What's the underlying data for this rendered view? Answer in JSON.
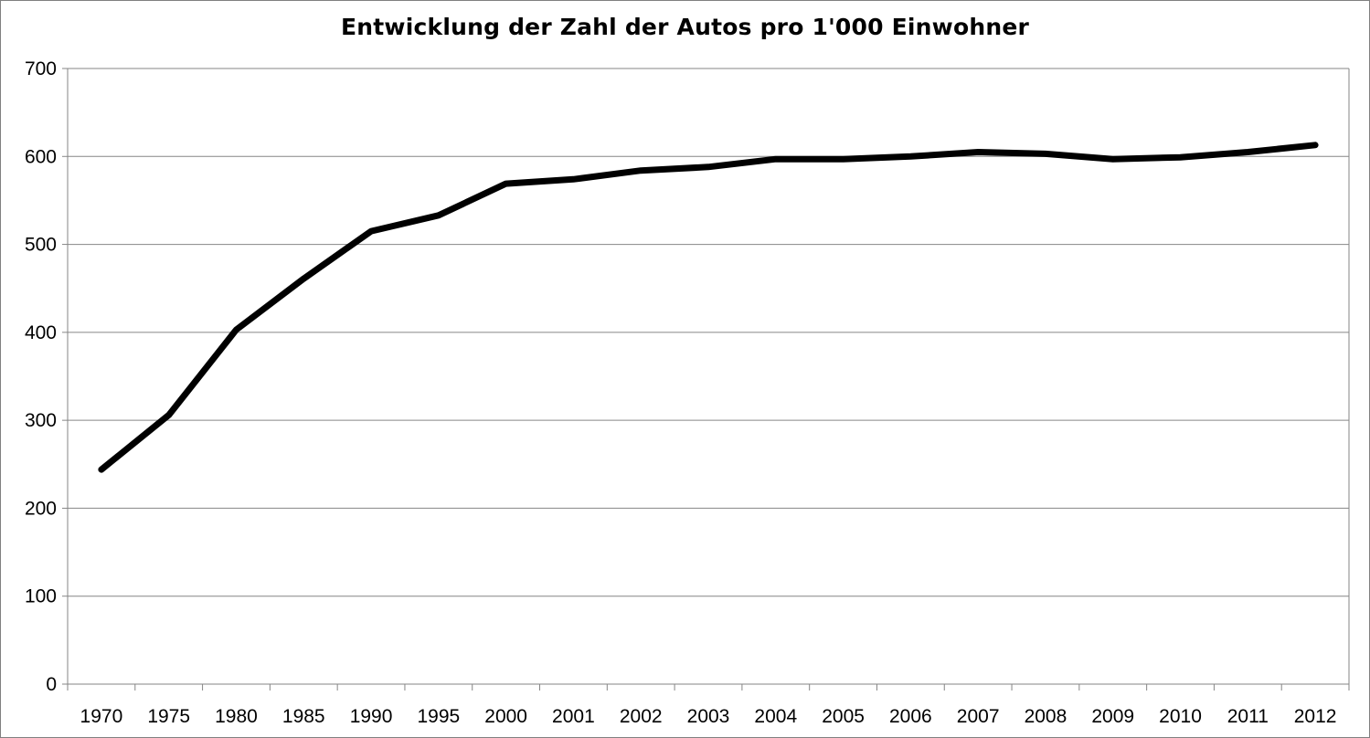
{
  "chart_data": {
    "type": "line",
    "title": "Entwicklung der Zahl der Autos pro 1'000 Einwohner",
    "xlabel": "",
    "ylabel": "",
    "categories": [
      "1970",
      "1975",
      "1980",
      "1985",
      "1990",
      "1995",
      "2000",
      "2001",
      "2002",
      "2003",
      "2004",
      "2005",
      "2006",
      "2007",
      "2008",
      "2009",
      "2010",
      "2011",
      "2012"
    ],
    "series": [
      {
        "values": [
          244,
          306,
          403,
          461,
          515,
          533,
          569,
          574,
          584,
          588,
          597,
          597,
          600,
          605,
          603,
          597,
          599,
          605,
          613
        ]
      }
    ],
    "ylim": [
      0,
      700
    ],
    "yticks": [
      0,
      100,
      200,
      300,
      400,
      500,
      600,
      700
    ],
    "grid": true,
    "legend": "none",
    "line_color": "#000000",
    "grid_color": "#868686",
    "axis_color": "#868686"
  }
}
